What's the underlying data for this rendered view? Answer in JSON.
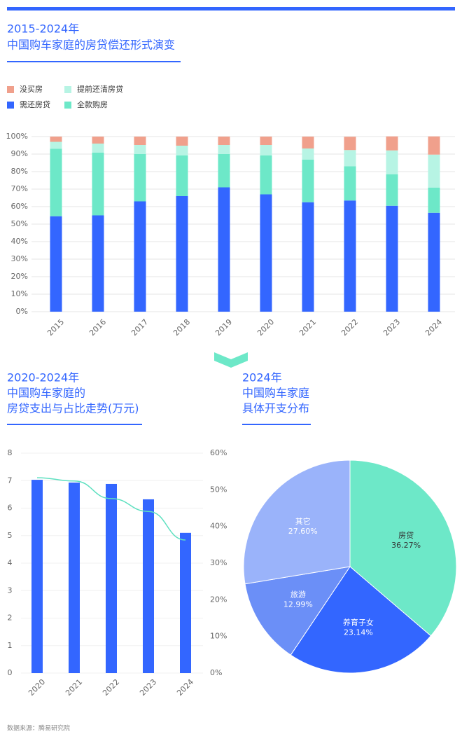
{
  "chart_data": [
    {
      "type": "stacked_bar",
      "title": "2015-2024年",
      "subtitle": "中国购车家庭的房贷偿还形式演变",
      "categories": [
        "2015",
        "2016",
        "2017",
        "2018",
        "2019",
        "2020",
        "2021",
        "2022",
        "2023",
        "2024"
      ],
      "series": [
        {
          "name": "需还房贷",
          "color": "#3366ff",
          "values": [
            54.5,
            55,
            63,
            66,
            71,
            67,
            62.5,
            63.5,
            60.5,
            56.5
          ]
        },
        {
          "name": "全款购房",
          "color": "#6de8c8",
          "values": [
            38.5,
            35.8,
            27,
            23.2,
            19,
            22.2,
            24.3,
            19.6,
            18,
            14.4
          ]
        },
        {
          "name": "提前还清房贷",
          "color": "#b7f4e4",
          "values": [
            4,
            5.2,
            5.2,
            5.6,
            5.2,
            6,
            6.4,
            9.2,
            13.6,
            18.8
          ]
        },
        {
          "name": "没买房",
          "color": "#f0a08c",
          "values": [
            3,
            4,
            4.8,
            5.2,
            4.8,
            4.8,
            6.8,
            7.6,
            8,
            10.4
          ]
        }
      ],
      "ylim": [
        0,
        100
      ],
      "yticks": [
        {
          "value": 0,
          "label": "0%"
        },
        {
          "value": 10,
          "label": "10%"
        },
        {
          "value": 20,
          "label": "20%"
        },
        {
          "value": 30,
          "label": "30%"
        },
        {
          "value": 40,
          "label": "40%"
        },
        {
          "value": 50,
          "label": "50%"
        },
        {
          "value": 60,
          "label": "60%"
        },
        {
          "value": 70,
          "label": "70%"
        },
        {
          "value": 80,
          "label": "80%"
        },
        {
          "value": 90,
          "label": "90%"
        },
        {
          "value": 100,
          "label": "100%"
        }
      ],
      "grid": true
    },
    {
      "type": "bar_line",
      "title_lines": [
        "2020-2024年",
        "中国购车家庭的",
        "房贷支出与占比走势(万元)"
      ],
      "categories": [
        "2020",
        "2021",
        "2022",
        "2023",
        "2024"
      ],
      "series": [
        {
          "type": "bar",
          "color": "#3366ff",
          "values": [
            7.03,
            6.93,
            6.88,
            6.32,
            5.1
          ]
        },
        {
          "type": "line",
          "axis": "y2",
          "color": "#5ee0c0",
          "values": [
            53.3,
            52.4,
            47.6,
            44.1,
            36.3
          ]
        }
      ],
      "ylim": [
        0,
        8
      ],
      "yticks": [
        0,
        1,
        2,
        3,
        4,
        5,
        6,
        7,
        8
      ],
      "y2lim": [
        0,
        60
      ],
      "y2ticks": [
        {
          "value": 0,
          "label": "0%"
        },
        {
          "value": 10,
          "label": "10%"
        },
        {
          "value": 20,
          "label": "20%"
        },
        {
          "value": 30,
          "label": "30%"
        },
        {
          "value": 40,
          "label": "40%"
        },
        {
          "value": 50,
          "label": "50%"
        },
        {
          "value": 60,
          "label": "60%"
        }
      ],
      "grid": true
    },
    {
      "type": "pie",
      "title_lines": [
        "2024年",
        "中国购车家庭",
        "具体开支分布"
      ],
      "categories": [
        "房贷",
        "养育子女",
        "旅游",
        "其它"
      ],
      "values": [
        36.27,
        23.14,
        12.99,
        27.6
      ],
      "value_labels": [
        "36.27%",
        "23.14%",
        "12.99%",
        "27.60%"
      ],
      "colors": [
        "#6de8c8",
        "#3366ff",
        "#6b8ff7",
        "#9ab3fa"
      ]
    }
  ],
  "source": "数据来源：腾易研究院"
}
